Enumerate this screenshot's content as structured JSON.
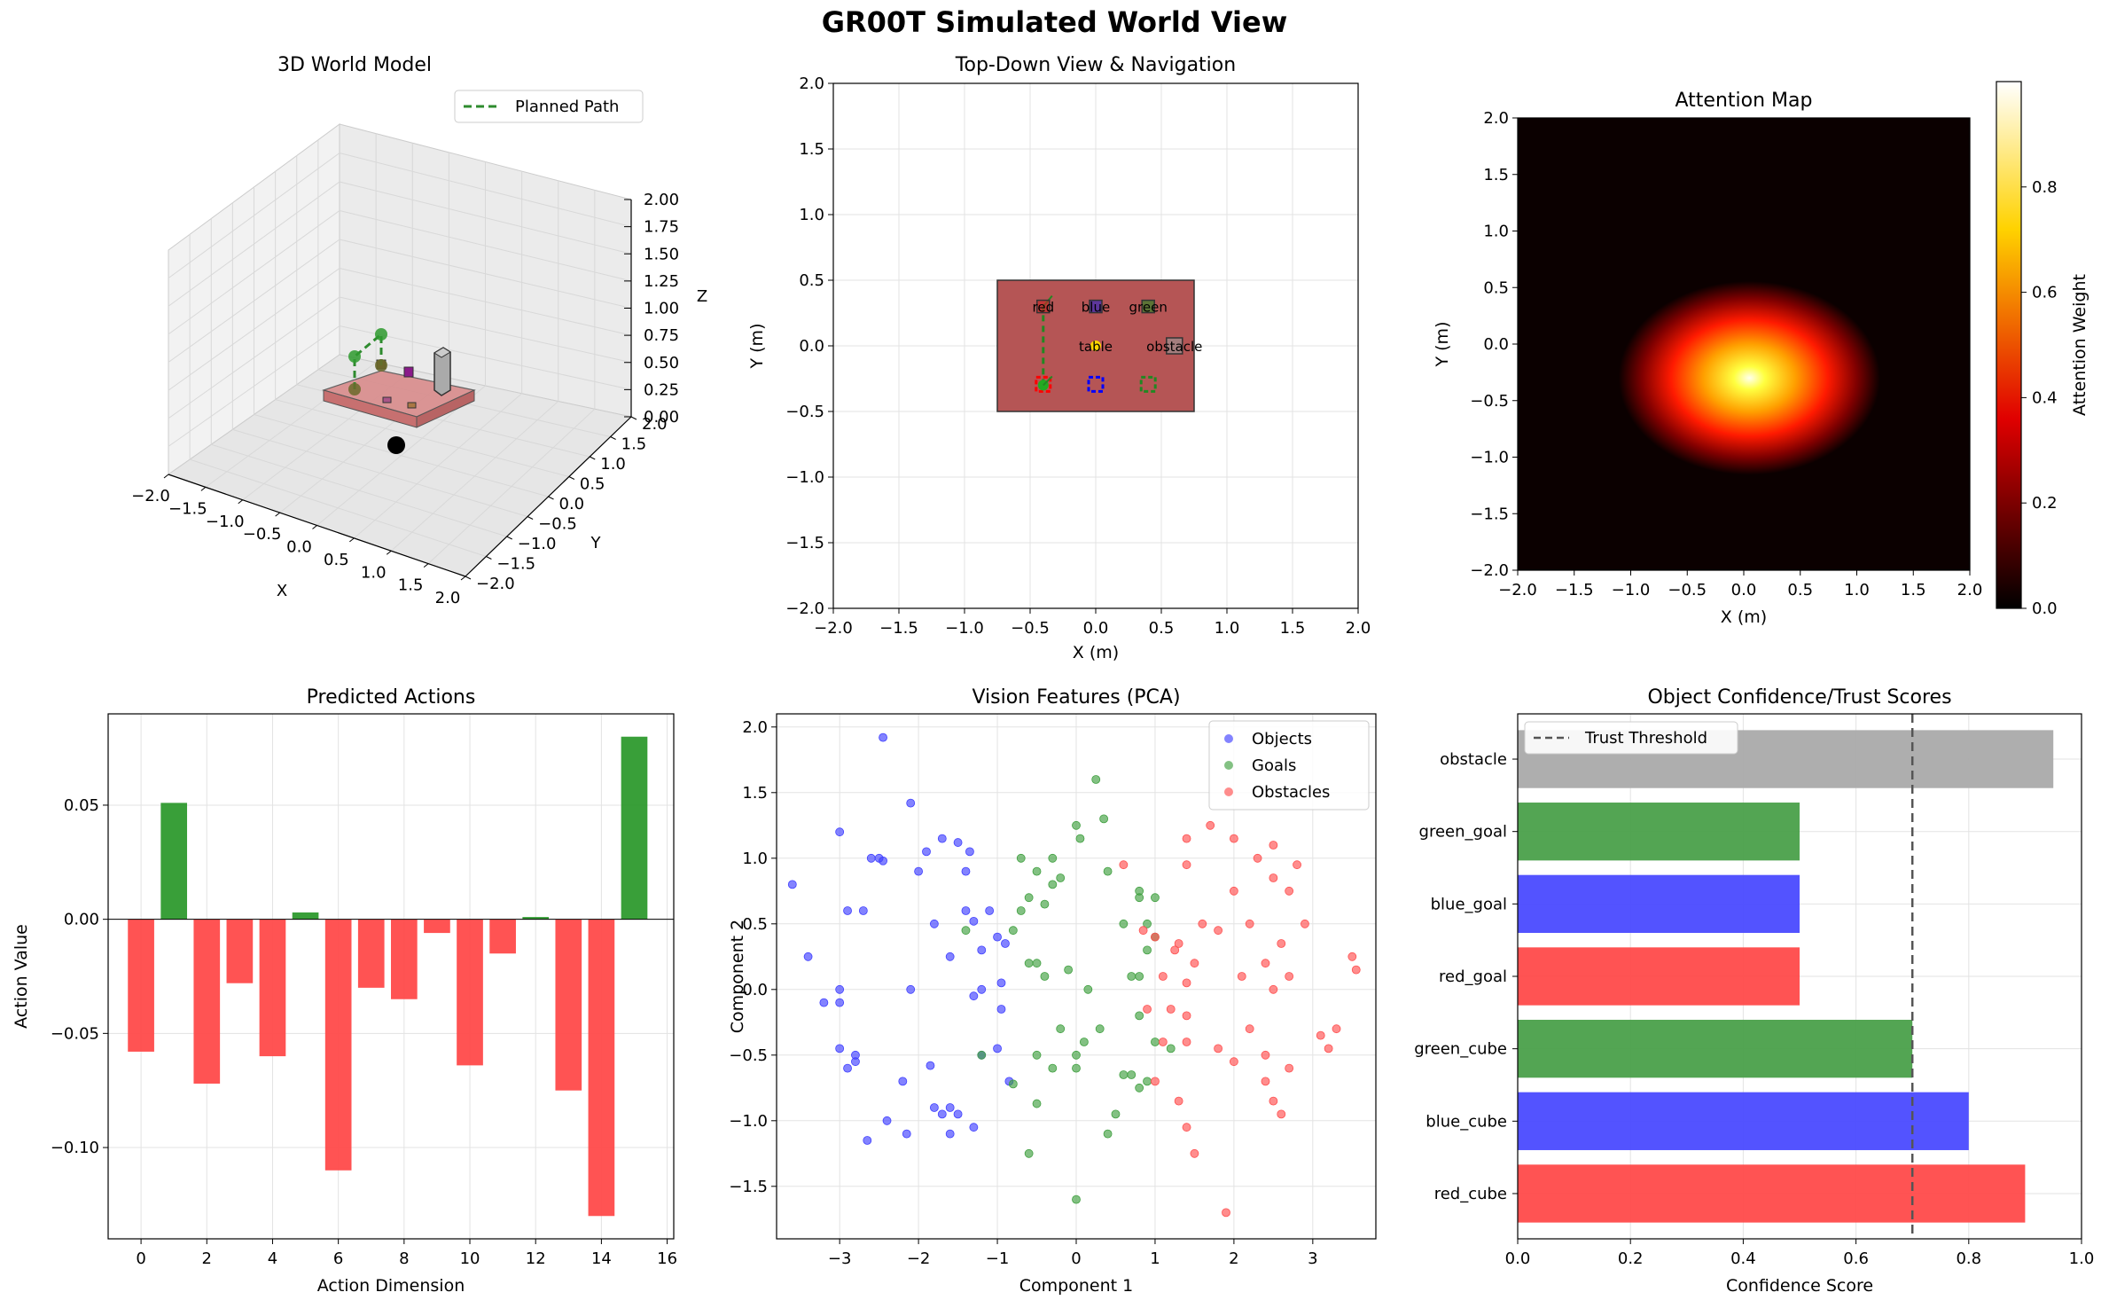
{
  "suptitle": "GR00T Simulated World View",
  "chart_data": [
    {
      "type": "3d-scatter",
      "title": "3D World Model",
      "xlabel": "X",
      "ylabel": "Y",
      "zlabel": "Z",
      "xlim": [
        -2.0,
        2.0
      ],
      "ylim": [
        -2.0,
        2.0
      ],
      "zlim": [
        0.0,
        2.0
      ],
      "xticks": [
        "−2.0",
        "−1.5",
        "−1.0",
        "−0.5",
        "0.0",
        "0.5",
        "1.0",
        "1.5",
        "2.0"
      ],
      "yticks": [
        "2.0",
        "1.5",
        "1.0",
        "0.5",
        "0.0",
        "−0.5",
        "−1.0",
        "−1.5",
        "−2.0"
      ],
      "zticks": [
        "2.00",
        "1.75",
        "1.50",
        "1.25",
        "1.00",
        "0.75",
        "0.50",
        "0.25",
        "0.00"
      ],
      "legend": [
        {
          "name": "Planned Path",
          "color": "#2e8b2e",
          "style": "dashed"
        }
      ],
      "grid": true,
      "table": {
        "x": [
          -0.75,
          0.75
        ],
        "y": [
          -0.5,
          0.5
        ],
        "z": 0.0,
        "color": "#c46060"
      },
      "objects": [
        {
          "name": "red_cube",
          "x": -0.4,
          "y": 0.3,
          "z": 0.05,
          "color": "#cc2222"
        },
        {
          "name": "blue_cube",
          "x": 0.0,
          "y": 0.3,
          "z": 0.05,
          "color": "#2222cc"
        },
        {
          "name": "green_cube",
          "x": 0.4,
          "y": 0.3,
          "z": 0.05,
          "color": "#228822"
        },
        {
          "name": "obstacle",
          "x": 0.6,
          "y": 0.0,
          "z": 0.25,
          "color": "#999999"
        }
      ],
      "robot": {
        "x": 0.0,
        "y": -1.0,
        "z": 0.0,
        "color": "#000000"
      },
      "path": [
        [
          -0.4,
          -0.3,
          0.3
        ],
        [
          -0.4,
          0.3,
          0.3
        ]
      ]
    },
    {
      "type": "scatter",
      "title": "Top-Down View & Navigation",
      "xlabel": "X (m)",
      "ylabel": "Y (m)",
      "xlim": [
        -2.0,
        2.0
      ],
      "ylim": [
        -2.0,
        2.0
      ],
      "xticks": [
        "−2.0",
        "−1.5",
        "−1.0",
        "−0.5",
        "0.0",
        "0.5",
        "1.0",
        "1.5",
        "2.0"
      ],
      "yticks": [
        "−2.0",
        "−1.5",
        "−1.0",
        "−0.5",
        "0.0",
        "0.5",
        "1.0",
        "1.5",
        "2.0"
      ],
      "grid": true,
      "table": {
        "x": [
          -0.75,
          0.75
        ],
        "y": [
          -0.5,
          0.5
        ],
        "color": "#b55555",
        "label": "table"
      },
      "objects": [
        {
          "label": "red",
          "x": -0.4,
          "y": 0.3,
          "color": "#cc2222"
        },
        {
          "label": "blue",
          "x": 0.0,
          "y": 0.3,
          "color": "#2222cc"
        },
        {
          "label": "green",
          "x": 0.4,
          "y": 0.3,
          "color": "#228822"
        },
        {
          "label": "obstacle",
          "x": 0.6,
          "y": 0.0,
          "color": "#999999"
        }
      ],
      "goals": [
        {
          "x": -0.4,
          "y": -0.3,
          "color": "#ff0000"
        },
        {
          "x": 0.0,
          "y": -0.3,
          "color": "#0000ff"
        },
        {
          "x": 0.4,
          "y": -0.3,
          "color": "#228822"
        }
      ],
      "path": [
        [
          -0.4,
          -0.3
        ],
        [
          -0.4,
          0.3
        ]
      ],
      "robot_marker": {
        "x": 0.0,
        "y": 0.0,
        "color": "#ffd700"
      }
    },
    {
      "type": "heatmap",
      "title": "Attention Map",
      "xlabel": "X (m)",
      "ylabel": "Y (m)",
      "xlim": [
        -2.0,
        2.0
      ],
      "ylim": [
        -2.0,
        2.0
      ],
      "xticks": [
        "−2.0",
        "−1.5",
        "−1.0",
        "−0.5",
        "0.0",
        "0.5",
        "1.0",
        "1.5",
        "2.0"
      ],
      "yticks": [
        "−2.0",
        "−1.5",
        "−1.0",
        "−0.5",
        "0.0",
        "0.5",
        "1.0",
        "1.5",
        "2.0"
      ],
      "colorbar_label": "Attention Weight",
      "colorbar_ticks": [
        "0.0",
        "0.2",
        "0.4",
        "0.6",
        "0.8"
      ],
      "colormap": "hot",
      "peak": {
        "x": 0.0,
        "y": -0.3,
        "value": 1.0
      },
      "extent": {
        "x": [
          -1.0,
          1.0
        ],
        "y": [
          -1.0,
          0.4
        ]
      }
    },
    {
      "type": "bar",
      "title": "Predicted Actions",
      "xlabel": "Action Dimension",
      "ylabel": "Action Value",
      "xticks": [
        "0",
        "2",
        "4",
        "6",
        "8",
        "10",
        "12",
        "14",
        "16"
      ],
      "yticks": [
        "0.05",
        "0.00",
        "−0.05",
        "−0.10"
      ],
      "xlim": [
        -1,
        16.2
      ],
      "ylim": [
        -0.14,
        0.09
      ],
      "categories": [
        0,
        1,
        2,
        3,
        4,
        5,
        6,
        7,
        8,
        9,
        10,
        11,
        12,
        13,
        14,
        15
      ],
      "values": [
        -0.058,
        0.051,
        -0.072,
        -0.028,
        -0.06,
        0.003,
        -0.11,
        -0.03,
        -0.035,
        -0.006,
        -0.064,
        -0.015,
        0.001,
        -0.075,
        -0.13,
        0.08
      ],
      "positive_color": "#2e9a2e",
      "negative_color": "#ff4a4a",
      "grid": true
    },
    {
      "type": "scatter",
      "title": "Vision Features (PCA)",
      "xlabel": "Component 1",
      "ylabel": "Component 2",
      "xticks": [
        "−3",
        "−2",
        "−1",
        "0",
        "1",
        "2",
        "3"
      ],
      "yticks": [
        "−1.5",
        "−1.0",
        "−0.5",
        "0.0",
        "0.5",
        "1.0",
        "1.5",
        "2.0"
      ],
      "xlim": [
        -3.8,
        3.8
      ],
      "ylim": [
        -1.9,
        2.1
      ],
      "legend_position": "top-right",
      "grid": true,
      "series": [
        {
          "name": "Objects",
          "color": "#4040ff",
          "points": [
            [
              -3.6,
              0.8
            ],
            [
              -3.4,
              0.25
            ],
            [
              -3.2,
              -0.1
            ],
            [
              -3.0,
              1.2
            ],
            [
              -3.0,
              0.0
            ],
            [
              -3.0,
              -0.1
            ],
            [
              -3.0,
              -0.45
            ],
            [
              -2.9,
              0.6
            ],
            [
              -2.9,
              -0.6
            ],
            [
              -2.8,
              -0.55
            ],
            [
              -2.7,
              0.6
            ],
            [
              -2.8,
              -0.5
            ],
            [
              -2.6,
              1.0
            ],
            [
              -2.5,
              1.0
            ],
            [
              -2.45,
              1.92
            ],
            [
              -2.45,
              0.98
            ],
            [
              -2.4,
              -1.0
            ],
            [
              -2.2,
              -0.7
            ],
            [
              -2.1,
              1.42
            ],
            [
              -2.1,
              0.0
            ],
            [
              -2.0,
              0.9
            ],
            [
              -1.9,
              1.05
            ],
            [
              -1.8,
              0.5
            ],
            [
              -1.8,
              -0.9
            ],
            [
              -1.6,
              0.25
            ],
            [
              -1.6,
              -1.1
            ],
            [
              -1.5,
              1.12
            ],
            [
              -1.4,
              0.6
            ],
            [
              -1.4,
              0.9
            ],
            [
              -1.3,
              -0.05
            ],
            [
              -1.2,
              0.3
            ],
            [
              -1.2,
              -0.5
            ],
            [
              -1.0,
              -0.45
            ],
            [
              -1.0,
              0.4
            ],
            [
              -1.3,
              0.52
            ],
            [
              -1.1,
              0.6
            ],
            [
              -0.95,
              -0.15
            ],
            [
              -1.85,
              -0.58
            ],
            [
              -1.5,
              -0.95
            ],
            [
              -1.3,
              -1.05
            ],
            [
              -0.85,
              -0.7
            ],
            [
              -1.7,
              -0.95
            ],
            [
              -2.15,
              -1.1
            ],
            [
              -2.65,
              -1.15
            ],
            [
              -1.2,
              0.0
            ],
            [
              -1.7,
              1.15
            ],
            [
              -1.35,
              1.05
            ],
            [
              -1.6,
              -0.9
            ],
            [
              -0.95,
              0.05
            ],
            [
              -0.9,
              0.35
            ]
          ]
        },
        {
          "name": "Goals",
          "color": "#40a040",
          "points": [
            [
              0.25,
              1.6
            ],
            [
              0.35,
              1.3
            ],
            [
              0.0,
              1.25
            ],
            [
              0.05,
              1.15
            ],
            [
              -0.3,
              1.0
            ],
            [
              -0.7,
              1.0
            ],
            [
              -0.2,
              0.85
            ],
            [
              -0.7,
              0.6
            ],
            [
              -0.6,
              0.7
            ],
            [
              -0.4,
              0.65
            ],
            [
              -0.3,
              0.8
            ],
            [
              -0.5,
              0.9
            ],
            [
              0.4,
              0.9
            ],
            [
              0.8,
              0.7
            ],
            [
              1.0,
              0.7
            ],
            [
              0.8,
              0.75
            ],
            [
              0.6,
              0.5
            ],
            [
              0.9,
              0.5
            ],
            [
              0.7,
              0.1
            ],
            [
              1.0,
              0.4
            ],
            [
              0.9,
              0.3
            ],
            [
              0.8,
              0.1
            ],
            [
              -0.1,
              0.15
            ],
            [
              -0.5,
              0.2
            ],
            [
              -1.4,
              0.45
            ],
            [
              -0.8,
              0.45
            ],
            [
              -0.2,
              -0.3
            ],
            [
              0.1,
              -0.4
            ],
            [
              -0.5,
              -0.5
            ],
            [
              -0.8,
              -0.72
            ],
            [
              -0.5,
              -0.87
            ],
            [
              0.5,
              -0.95
            ],
            [
              0.8,
              -0.75
            ],
            [
              1.0,
              -0.4
            ],
            [
              0.0,
              -0.5
            ],
            [
              -0.6,
              -1.25
            ],
            [
              0.0,
              -1.6
            ],
            [
              0.6,
              -0.65
            ],
            [
              0.7,
              -0.65
            ],
            [
              0.4,
              -1.1
            ],
            [
              -0.6,
              0.2
            ],
            [
              -1.2,
              -0.5
            ],
            [
              -0.3,
              -0.6
            ],
            [
              0.3,
              -0.3
            ],
            [
              0.0,
              -0.6
            ],
            [
              0.8,
              -0.2
            ],
            [
              0.9,
              -0.7
            ],
            [
              1.2,
              -0.45
            ],
            [
              0.15,
              0.0
            ],
            [
              -0.4,
              0.1
            ]
          ]
        },
        {
          "name": "Obstacles",
          "color": "#ff5050",
          "points": [
            [
              0.6,
              0.95
            ],
            [
              1.4,
              1.15
            ],
            [
              1.4,
              0.95
            ],
            [
              1.7,
              1.25
            ],
            [
              2.0,
              1.15
            ],
            [
              2.3,
              1.0
            ],
            [
              2.5,
              1.1
            ],
            [
              2.8,
              0.95
            ],
            [
              2.5,
              0.85
            ],
            [
              2.0,
              0.75
            ],
            [
              1.8,
              0.45
            ],
            [
              1.6,
              0.5
            ],
            [
              2.2,
              0.5
            ],
            [
              2.7,
              0.75
            ],
            [
              2.9,
              0.5
            ],
            [
              3.5,
              0.25
            ],
            [
              3.55,
              0.15
            ],
            [
              2.6,
              0.35
            ],
            [
              2.4,
              0.2
            ],
            [
              2.7,
              0.1
            ],
            [
              2.5,
              0.0
            ],
            [
              2.1,
              0.1
            ],
            [
              1.3,
              0.35
            ],
            [
              1.0,
              0.4
            ],
            [
              1.1,
              0.1
            ],
            [
              0.85,
              0.45
            ],
            [
              1.5,
              0.2
            ],
            [
              1.25,
              0.3
            ],
            [
              0.9,
              -0.15
            ],
            [
              1.2,
              -0.15
            ],
            [
              1.4,
              0.05
            ],
            [
              1.4,
              -0.2
            ],
            [
              1.1,
              -0.4
            ],
            [
              1.4,
              -0.4
            ],
            [
              1.8,
              -0.45
            ],
            [
              2.0,
              -0.55
            ],
            [
              2.2,
              -0.3
            ],
            [
              2.4,
              -0.5
            ],
            [
              2.4,
              -0.7
            ],
            [
              2.5,
              -0.85
            ],
            [
              2.6,
              -0.95
            ],
            [
              2.7,
              -0.6
            ],
            [
              3.2,
              -0.45
            ],
            [
              3.3,
              -0.3
            ],
            [
              3.1,
              -0.35
            ],
            [
              1.0,
              -0.7
            ],
            [
              1.4,
              -1.05
            ],
            [
              1.5,
              -1.25
            ],
            [
              1.3,
              -0.85
            ],
            [
              1.9,
              -1.7
            ]
          ]
        }
      ]
    },
    {
      "type": "barh",
      "title": "Object Confidence/Trust Scores",
      "xlabel": "Confidence Score",
      "xticks": [
        "0.0",
        "0.2",
        "0.4",
        "0.6",
        "0.8",
        "1.0"
      ],
      "xlim": [
        0.0,
        1.0
      ],
      "categories": [
        "obstacle",
        "green_goal",
        "blue_goal",
        "red_goal",
        "green_cube",
        "blue_cube",
        "red_cube"
      ],
      "values": [
        0.95,
        0.5,
        0.5,
        0.5,
        0.7,
        0.8,
        0.9
      ],
      "colors": [
        "#aaaaaa",
        "#4aa04a",
        "#4a4aff",
        "#ff4a4a",
        "#4aa04a",
        "#4a4aff",
        "#ff4a4a"
      ],
      "threshold": {
        "name": "Trust Threshold",
        "value": 0.7,
        "color": "#555555"
      },
      "legend_position": "top-left",
      "grid": true
    }
  ]
}
